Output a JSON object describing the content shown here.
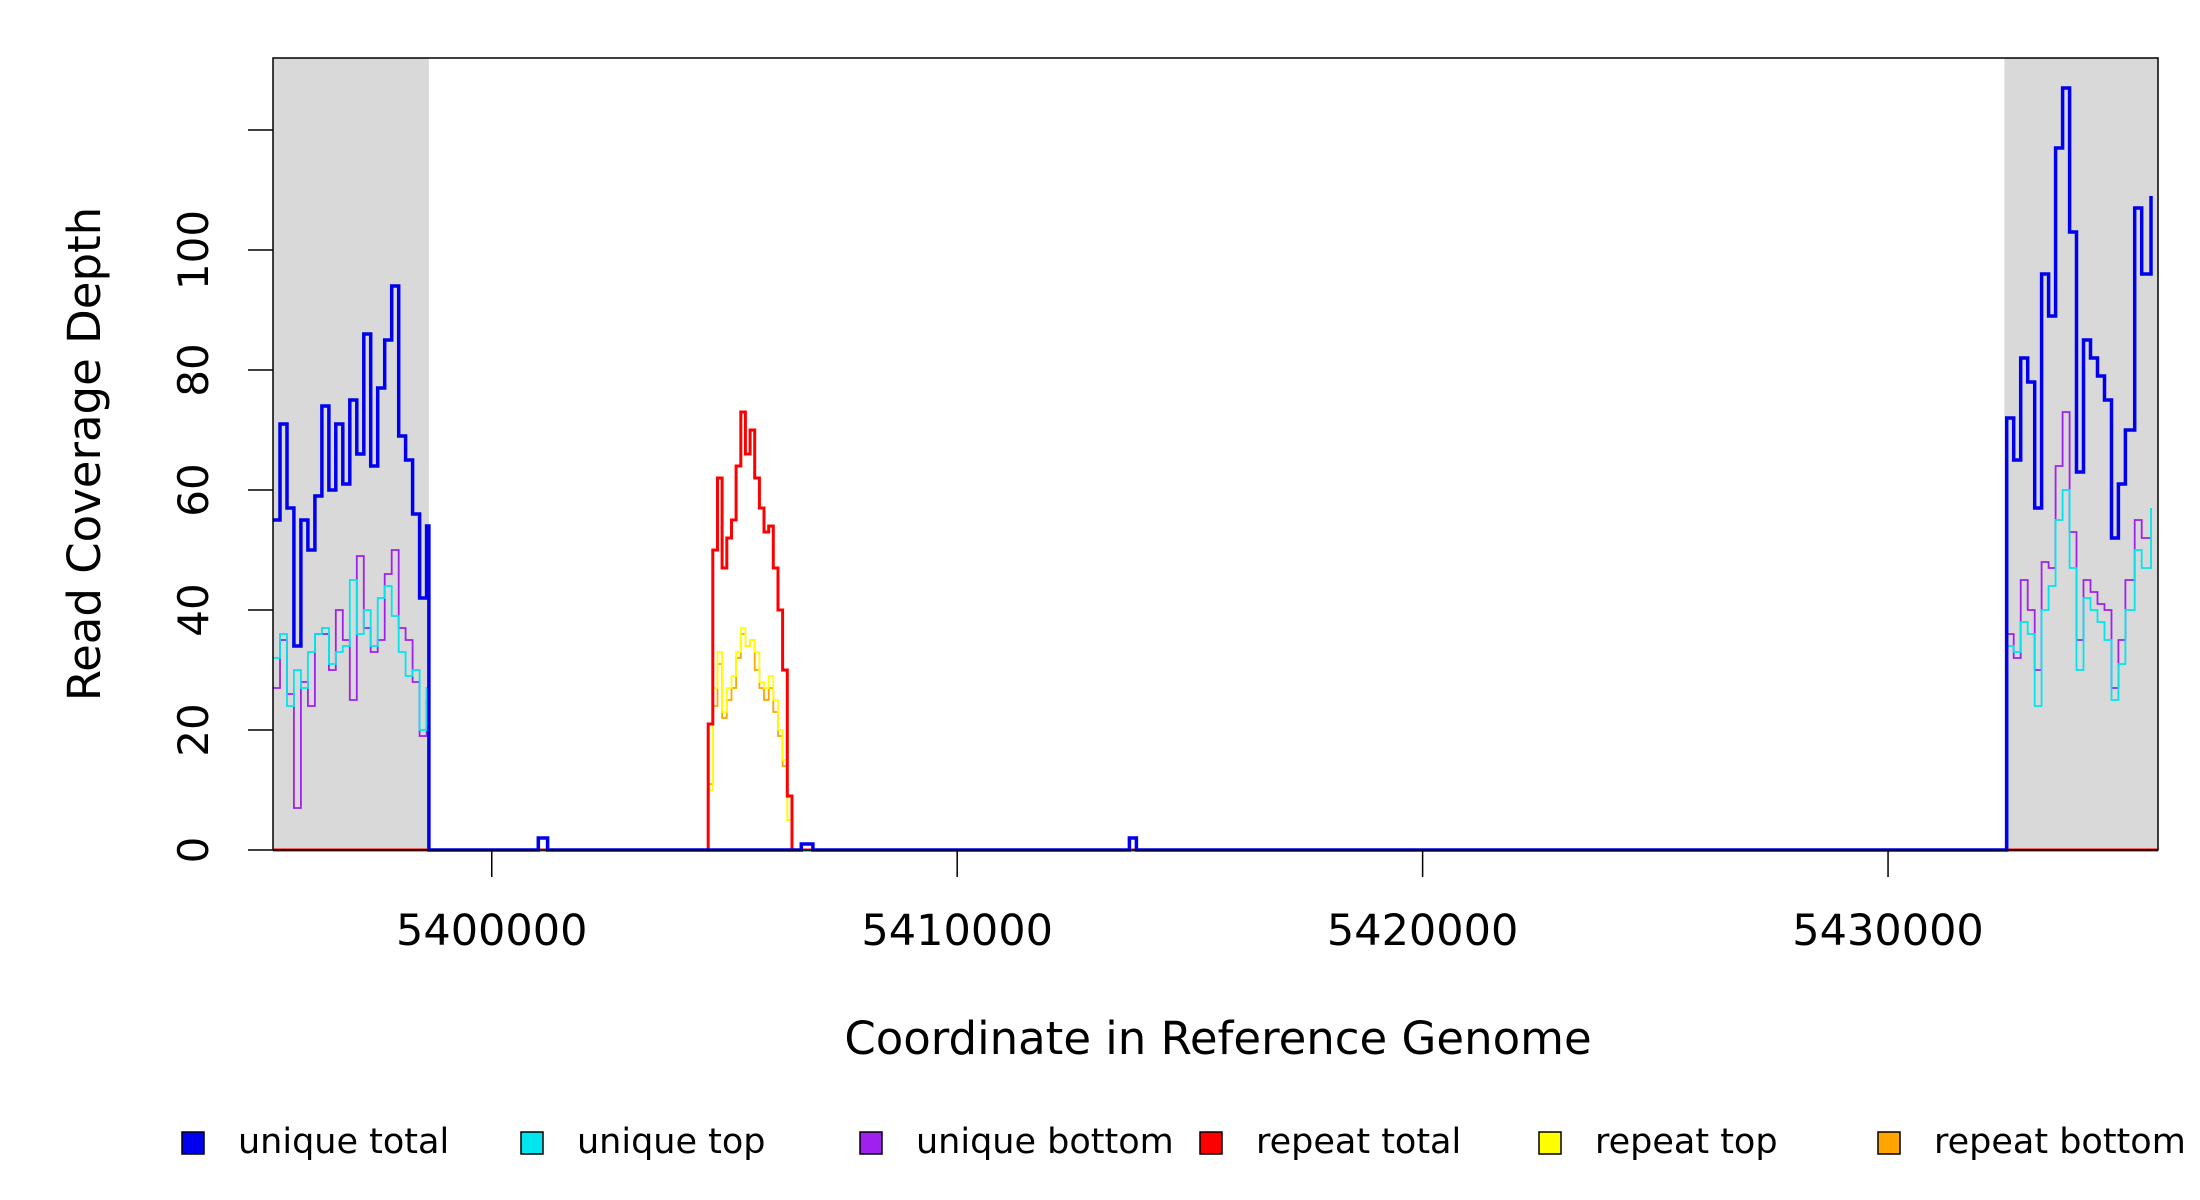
{
  "chart_data": {
    "type": "line",
    "title": "",
    "xlabel": "Coordinate in Reference Genome",
    "ylabel": "Read Coverage Depth",
    "xlim": [
      5395300,
      5435800
    ],
    "ylim": [
      0,
      132
    ],
    "x_ticks": [
      5400000,
      5410000,
      5420000,
      5430000
    ],
    "x_tick_labels": [
      "5400000",
      "5410000",
      "5420000",
      "5430000"
    ],
    "y_ticks": [
      0,
      20,
      40,
      60,
      80,
      100,
      120
    ],
    "y_tick_labels": [
      "0",
      "20",
      "40",
      "60",
      "80",
      "100",
      ""
    ],
    "shaded_regions": [
      [
        5395300,
        5398650
      ],
      [
        5432500,
        5435800
      ]
    ],
    "grid": false,
    "legend_position": "bottom",
    "series": [
      {
        "name": "unique total",
        "color": "#0000ee",
        "points": [
          [
            5395300,
            55
          ],
          [
            5395450,
            71
          ],
          [
            5395600,
            57
          ],
          [
            5395750,
            34
          ],
          [
            5395900,
            55
          ],
          [
            5396050,
            50
          ],
          [
            5396200,
            59
          ],
          [
            5396350,
            74
          ],
          [
            5396500,
            60
          ],
          [
            5396650,
            71
          ],
          [
            5396800,
            61
          ],
          [
            5396950,
            75
          ],
          [
            5397100,
            66
          ],
          [
            5397250,
            86
          ],
          [
            5397400,
            64
          ],
          [
            5397550,
            77
          ],
          [
            5397700,
            85
          ],
          [
            5397850,
            94
          ],
          [
            5398000,
            69
          ],
          [
            5398150,
            65
          ],
          [
            5398300,
            56
          ],
          [
            5398450,
            42
          ],
          [
            5398600,
            54
          ],
          [
            5398650,
            0
          ],
          [
            5401000,
            2
          ],
          [
            5401200,
            0
          ],
          [
            5406500,
            0
          ],
          [
            5406650,
            1
          ],
          [
            5406900,
            0
          ],
          [
            5413700,
            2
          ],
          [
            5413850,
            0
          ],
          [
            5432500,
            0
          ],
          [
            5432550,
            72
          ],
          [
            5432700,
            65
          ],
          [
            5432850,
            82
          ],
          [
            5433000,
            78
          ],
          [
            5433150,
            57
          ],
          [
            5433300,
            96
          ],
          [
            5433450,
            89
          ],
          [
            5433600,
            117
          ],
          [
            5433750,
            127
          ],
          [
            5433900,
            103
          ],
          [
            5434050,
            63
          ],
          [
            5434200,
            85
          ],
          [
            5434350,
            82
          ],
          [
            5434500,
            79
          ],
          [
            5434650,
            75
          ],
          [
            5434800,
            52
          ],
          [
            5434950,
            61
          ],
          [
            5435100,
            70
          ],
          [
            5435300,
            107
          ],
          [
            5435450,
            96
          ],
          [
            5435650,
            109
          ]
        ]
      },
      {
        "name": "unique top",
        "color": "#00e5ee",
        "points": [
          [
            5395300,
            32
          ],
          [
            5395450,
            36
          ],
          [
            5395600,
            24
          ],
          [
            5395750,
            30
          ],
          [
            5395900,
            27
          ],
          [
            5396050,
            33
          ],
          [
            5396200,
            36
          ],
          [
            5396350,
            37
          ],
          [
            5396500,
            31
          ],
          [
            5396650,
            33
          ],
          [
            5396800,
            34
          ],
          [
            5396950,
            45
          ],
          [
            5397100,
            36
          ],
          [
            5397250,
            40
          ],
          [
            5397400,
            34
          ],
          [
            5397550,
            42
          ],
          [
            5397700,
            44
          ],
          [
            5397850,
            39
          ],
          [
            5398000,
            33
          ],
          [
            5398150,
            29
          ],
          [
            5398300,
            30
          ],
          [
            5398450,
            20
          ],
          [
            5398600,
            27
          ],
          [
            5398650,
            0
          ],
          [
            5432500,
            0
          ],
          [
            5432550,
            34
          ],
          [
            5432700,
            33
          ],
          [
            5432850,
            38
          ],
          [
            5433000,
            36
          ],
          [
            5433150,
            24
          ],
          [
            5433300,
            40
          ],
          [
            5433450,
            44
          ],
          [
            5433600,
            55
          ],
          [
            5433750,
            60
          ],
          [
            5433900,
            47
          ],
          [
            5434050,
            30
          ],
          [
            5434200,
            42
          ],
          [
            5434350,
            40
          ],
          [
            5434500,
            38
          ],
          [
            5434650,
            35
          ],
          [
            5434800,
            25
          ],
          [
            5434950,
            31
          ],
          [
            5435100,
            40
          ],
          [
            5435300,
            50
          ],
          [
            5435450,
            47
          ],
          [
            5435650,
            57
          ]
        ]
      },
      {
        "name": "unique bottom",
        "color": "#a020f0",
        "points": [
          [
            5395300,
            27
          ],
          [
            5395450,
            35
          ],
          [
            5395600,
            26
          ],
          [
            5395750,
            7
          ],
          [
            5395900,
            28
          ],
          [
            5396050,
            24
          ],
          [
            5396200,
            36
          ],
          [
            5396350,
            36
          ],
          [
            5396500,
            30
          ],
          [
            5396650,
            40
          ],
          [
            5396800,
            35
          ],
          [
            5396950,
            25
          ],
          [
            5397100,
            49
          ],
          [
            5397250,
            37
          ],
          [
            5397400,
            33
          ],
          [
            5397550,
            35
          ],
          [
            5397700,
            46
          ],
          [
            5397850,
            50
          ],
          [
            5398000,
            37
          ],
          [
            5398150,
            35
          ],
          [
            5398300,
            28
          ],
          [
            5398450,
            19
          ],
          [
            5398600,
            25
          ],
          [
            5398650,
            0
          ],
          [
            5432500,
            0
          ],
          [
            5432550,
            36
          ],
          [
            5432700,
            32
          ],
          [
            5432850,
            45
          ],
          [
            5433000,
            40
          ],
          [
            5433150,
            30
          ],
          [
            5433300,
            48
          ],
          [
            5433450,
            47
          ],
          [
            5433600,
            64
          ],
          [
            5433750,
            73
          ],
          [
            5433900,
            53
          ],
          [
            5434050,
            35
          ],
          [
            5434200,
            45
          ],
          [
            5434350,
            43
          ],
          [
            5434500,
            41
          ],
          [
            5434650,
            40
          ],
          [
            5434800,
            27
          ],
          [
            5434950,
            35
          ],
          [
            5435100,
            45
          ],
          [
            5435300,
            55
          ],
          [
            5435450,
            52
          ],
          [
            5435650,
            52
          ]
        ]
      },
      {
        "name": "repeat total",
        "color": "#ff0000",
        "points": [
          [
            5395300,
            0
          ],
          [
            5404600,
            0
          ],
          [
            5404650,
            21
          ],
          [
            5404750,
            50
          ],
          [
            5404850,
            62
          ],
          [
            5404950,
            47
          ],
          [
            5405050,
            52
          ],
          [
            5405150,
            55
          ],
          [
            5405250,
            64
          ],
          [
            5405350,
            73
          ],
          [
            5405450,
            66
          ],
          [
            5405550,
            70
          ],
          [
            5405650,
            62
          ],
          [
            5405750,
            57
          ],
          [
            5405850,
            53
          ],
          [
            5405950,
            54
          ],
          [
            5406050,
            47
          ],
          [
            5406150,
            40
          ],
          [
            5406250,
            30
          ],
          [
            5406350,
            9
          ],
          [
            5406450,
            0
          ],
          [
            5435800,
            0
          ]
        ]
      },
      {
        "name": "repeat top",
        "color": "#ffff00",
        "points": [
          [
            5395300,
            0
          ],
          [
            5404600,
            0
          ],
          [
            5404650,
            10
          ],
          [
            5404750,
            27
          ],
          [
            5404850,
            33
          ],
          [
            5404950,
            23
          ],
          [
            5405050,
            27
          ],
          [
            5405150,
            29
          ],
          [
            5405250,
            33
          ],
          [
            5405350,
            37
          ],
          [
            5405450,
            34
          ],
          [
            5405550,
            35
          ],
          [
            5405650,
            33
          ],
          [
            5405750,
            28
          ],
          [
            5405850,
            27
          ],
          [
            5405950,
            29
          ],
          [
            5406050,
            25
          ],
          [
            5406150,
            20
          ],
          [
            5406250,
            15
          ],
          [
            5406350,
            5
          ],
          [
            5406450,
            0
          ],
          [
            5435800,
            0
          ]
        ]
      },
      {
        "name": "repeat bottom",
        "color": "#ffa500",
        "points": [
          [
            5395300,
            0
          ],
          [
            5404600,
            0
          ],
          [
            5404650,
            11
          ],
          [
            5404750,
            24
          ],
          [
            5404850,
            31
          ],
          [
            5404950,
            22
          ],
          [
            5405050,
            25
          ],
          [
            5405150,
            27
          ],
          [
            5405250,
            32
          ],
          [
            5405350,
            36
          ],
          [
            5405450,
            34
          ],
          [
            5405550,
            35
          ],
          [
            5405650,
            30
          ],
          [
            5405750,
            27
          ],
          [
            5405850,
            25
          ],
          [
            5405950,
            27
          ],
          [
            5406050,
            23
          ],
          [
            5406150,
            19
          ],
          [
            5406250,
            14
          ],
          [
            5406350,
            5
          ],
          [
            5406450,
            0
          ],
          [
            5435800,
            0
          ]
        ]
      }
    ]
  }
}
